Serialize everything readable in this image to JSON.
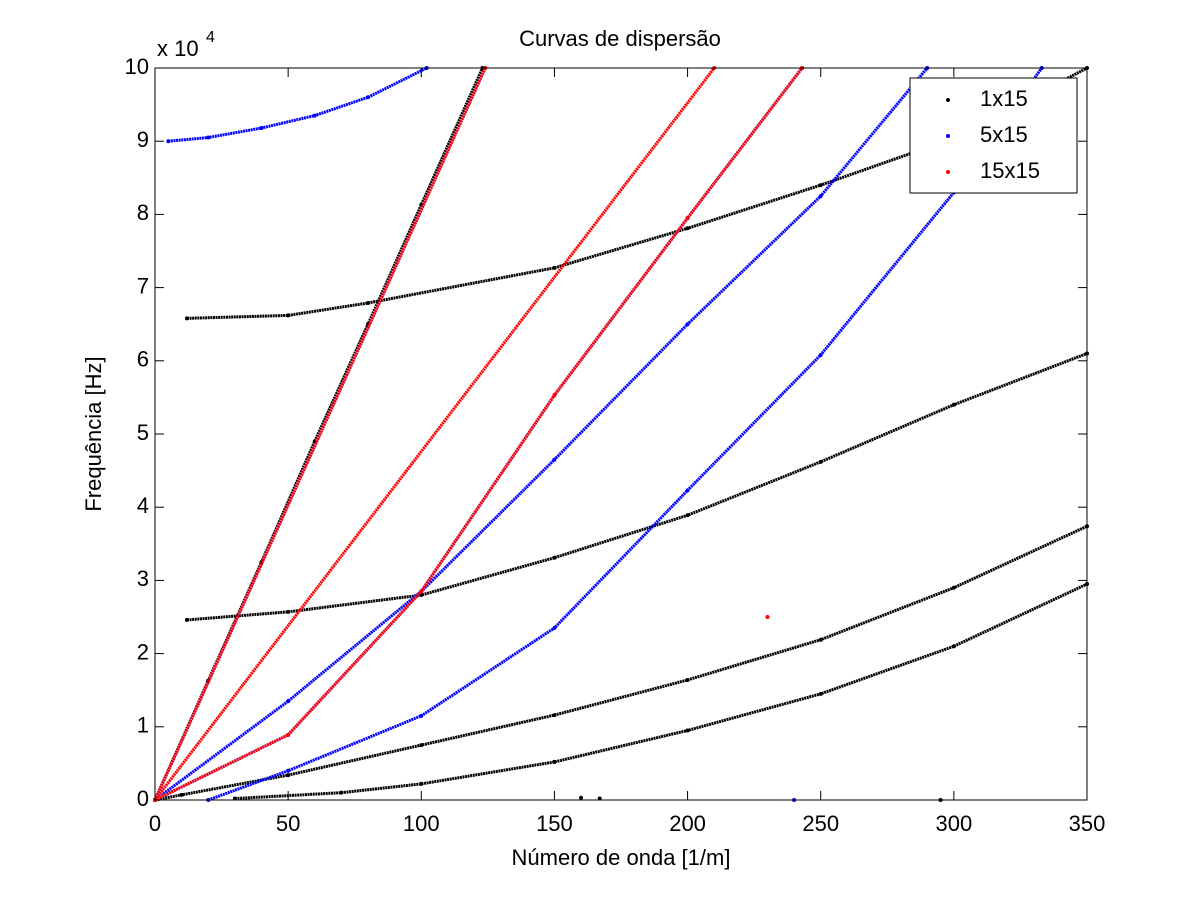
{
  "chart_data": {
    "type": "scatter",
    "title": "Curvas de dispersão",
    "xlabel": "Número de onda [1/m]",
    "ylabel": "Frequência [Hz]",
    "y_multiplier": "x 10",
    "y_multiplier_exponent": "4",
    "xlim": [
      0,
      350
    ],
    "ylim": [
      0,
      10
    ],
    "xticks": [
      0,
      50,
      100,
      150,
      200,
      250,
      300,
      350
    ],
    "yticks": [
      0,
      1,
      2,
      3,
      4,
      5,
      6,
      7,
      8,
      9,
      10
    ],
    "grid": false,
    "legend": "northeast",
    "series": [
      {
        "name": "1x15",
        "color": "#000000",
        "branches": [
          {
            "x": [
              0,
              20,
              40,
              60,
              80,
              100,
              123
            ],
            "values": [
              0,
              1.63,
              3.25,
              4.9,
              6.5,
              8.13,
              10
            ]
          },
          {
            "x": [
              12,
              50,
              80,
              150,
              200,
              250,
              300,
              350
            ],
            "values": [
              6.58,
              6.62,
              6.79,
              7.27,
              7.81,
              8.4,
              9.04,
              10
            ]
          },
          {
            "x": [
              12,
              50,
              100,
              150,
              200,
              250,
              300,
              350
            ],
            "values": [
              2.46,
              2.57,
              2.8,
              3.31,
              3.89,
              4.62,
              5.4,
              6.1
            ]
          },
          {
            "x": [
              0,
              10,
              50,
              100,
              150,
              200,
              250,
              300,
              350
            ],
            "values": [
              0,
              0.07,
              0.34,
              0.75,
              1.16,
              1.64,
              2.19,
              2.9,
              3.74
            ]
          },
          {
            "x": [
              30,
              70,
              100,
              150,
              200,
              250,
              300,
              350
            ],
            "values": [
              0.02,
              0.1,
              0.22,
              0.52,
              0.95,
              1.45,
              2.1,
              2.95
            ]
          },
          {
            "x": [
              160
            ],
            "values": [
              0.03
            ]
          },
          {
            "x": [
              167
            ],
            "values": [
              0.02
            ]
          },
          {
            "x": [
              295
            ],
            "values": [
              0
            ]
          }
        ]
      },
      {
        "name": "5x15",
        "color": "#0000ff",
        "branches": [
          {
            "x": [
              5,
              20,
              40,
              60,
              80,
              102
            ],
            "values": [
              9.0,
              9.05,
              9.18,
              9.35,
              9.6,
              10
            ]
          },
          {
            "x": [
              0,
              124
            ],
            "values": [
              0,
              10
            ]
          },
          {
            "x": [
              0,
              50,
              100,
              150,
              200,
              243
            ],
            "values": [
              0,
              0.89,
              2.85,
              5.53,
              7.95,
              10
            ]
          },
          {
            "x": [
              0,
              50,
              100,
              150,
              200,
              250,
              290
            ],
            "values": [
              0,
              1.35,
              2.85,
              4.65,
              6.5,
              8.25,
              10
            ]
          },
          {
            "x": [
              20,
              50,
              100,
              150,
              200,
              250,
              300,
              333
            ],
            "values": [
              0,
              0.4,
              1.15,
              2.35,
              4.23,
              6.08,
              8.3,
              10
            ]
          },
          {
            "x": [
              240
            ],
            "values": [
              0
            ]
          }
        ]
      },
      {
        "name": "15x15",
        "color": "#ff0000",
        "branches": [
          {
            "x": [
              0,
              124
            ],
            "values": [
              0,
              10
            ]
          },
          {
            "x": [
              0,
              210
            ],
            "values": [
              0,
              10
            ]
          },
          {
            "x": [
              0,
              50,
              100,
              150,
              200,
              243
            ],
            "values": [
              0,
              0.89,
              2.85,
              5.53,
              7.95,
              10
            ]
          },
          {
            "x": [
              230
            ],
            "values": [
              2.5
            ]
          }
        ]
      }
    ]
  }
}
